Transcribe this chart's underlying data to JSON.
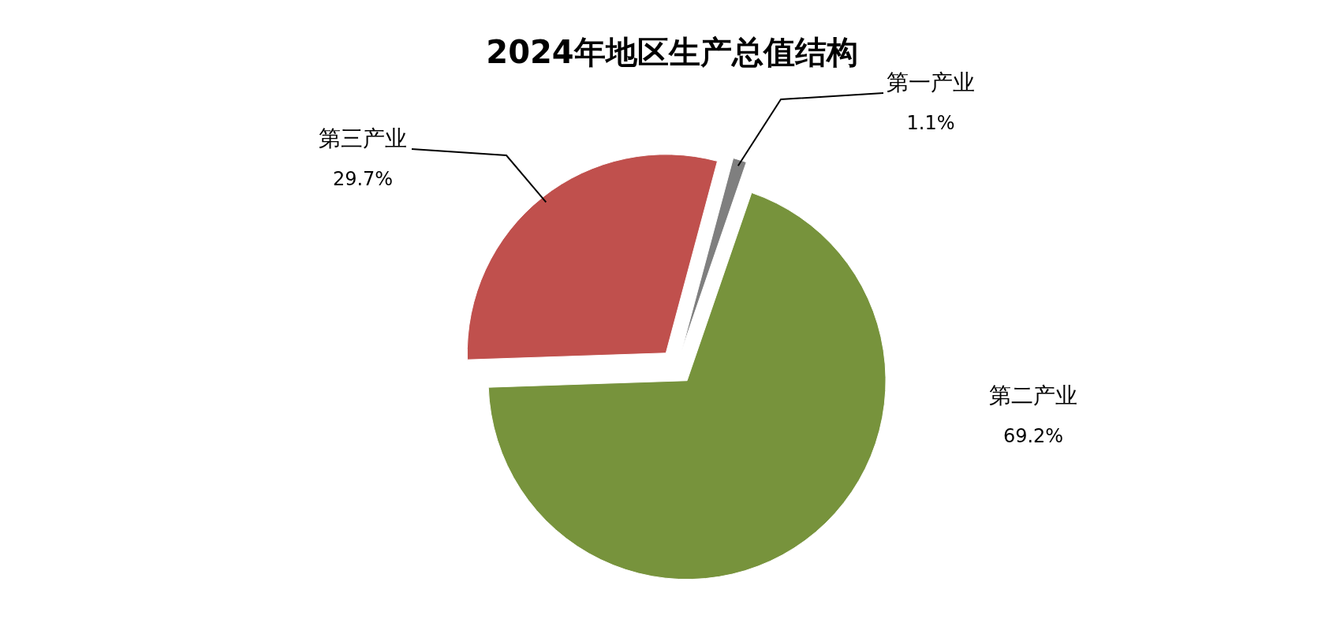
{
  "chart_data": {
    "type": "pie",
    "title": "2024年地区生产总值结构",
    "categories": [
      "第一产业",
      "第二产业",
      "第三产业"
    ],
    "values": [
      1.1,
      69.2,
      29.7
    ],
    "colors": [
      "#7f7f7f",
      "#77933c",
      "#c0504d"
    ],
    "data_labels": true,
    "value_labels": [
      "1.1%",
      "69.2%",
      "29.7%"
    ]
  }
}
